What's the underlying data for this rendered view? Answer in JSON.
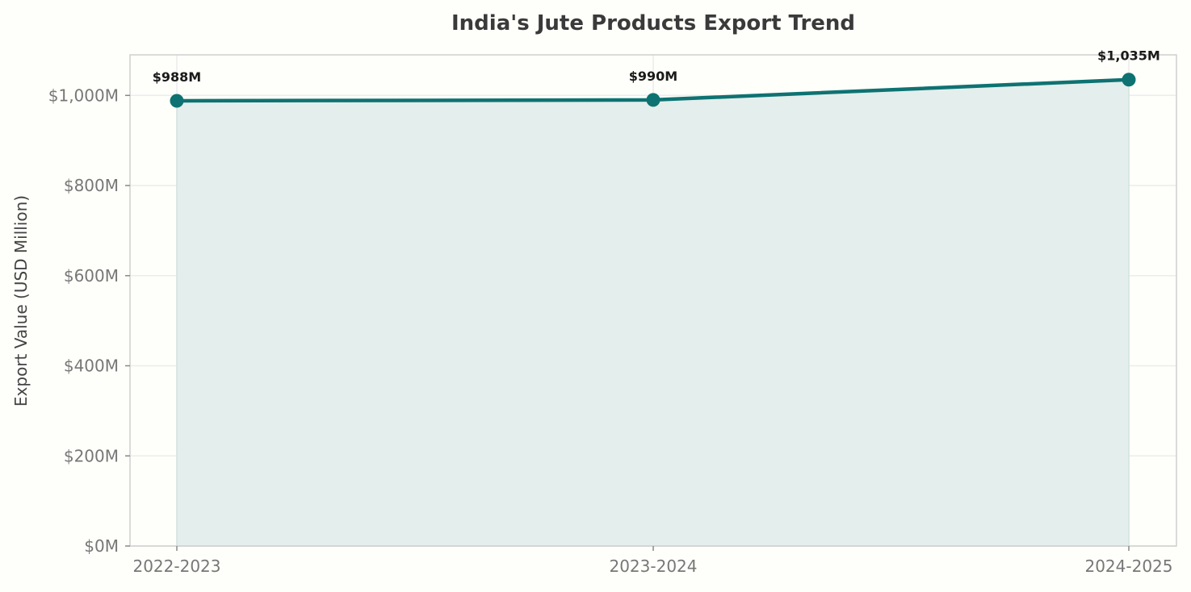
{
  "chart_data": {
    "type": "area",
    "title": "India's Jute Products Export Trend",
    "xlabel": "",
    "ylabel": "Export Value (USD Million)",
    "categories": [
      "2022-2023",
      "2023-2024",
      "2024-2025"
    ],
    "values": [
      988,
      990,
      1035
    ],
    "data_labels": [
      "$988M",
      "$990M",
      "$1,035M"
    ],
    "ylim": [
      0,
      1090
    ],
    "yticks": [
      0,
      200,
      400,
      600,
      800,
      1000
    ],
    "ytick_labels": [
      "$0M",
      "$200M",
      "$400M",
      "$600M",
      "$800M",
      "$1,000M"
    ],
    "grid": true,
    "legend": "none",
    "colors": {
      "line": "#0e7272",
      "fill": "#e4eeec",
      "background": "#fefefa"
    }
  }
}
